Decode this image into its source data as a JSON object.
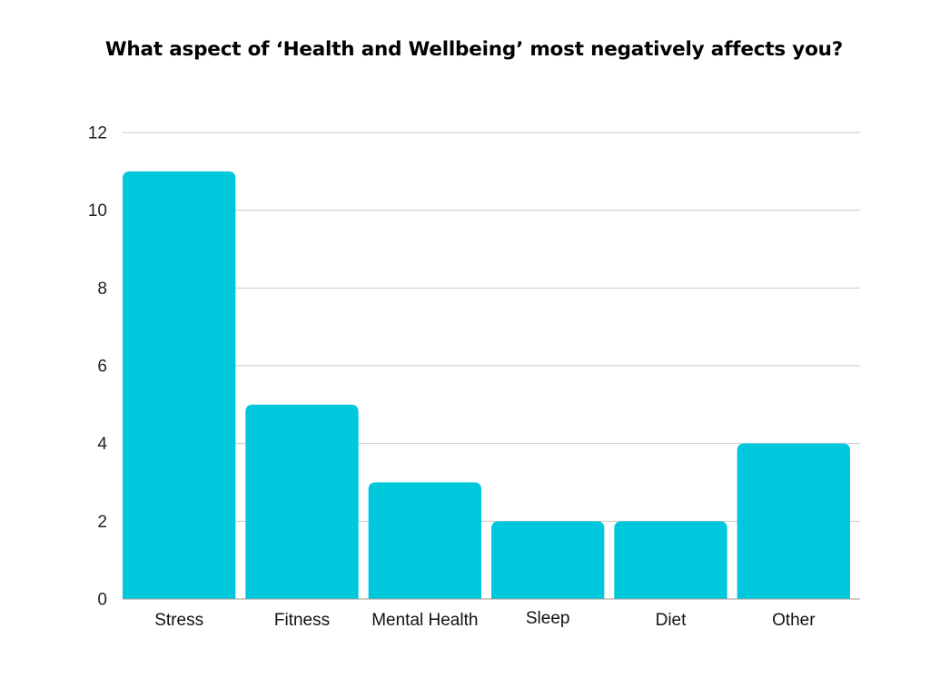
{
  "chart_data": {
    "type": "bar",
    "title": "What aspect of ‘Health and Wellbeing’ most negatively affects you?",
    "categories": [
      "Stress",
      "Fitness",
      "Mental Health",
      "Sleep",
      "Diet",
      "Other"
    ],
    "values": [
      11,
      5,
      3,
      2,
      2,
      4
    ],
    "xlabel": "",
    "ylabel": "",
    "ylim": [
      0,
      12
    ],
    "yticks": [
      0,
      2,
      4,
      6,
      8,
      10,
      12
    ],
    "grid": true,
    "legend": "none",
    "bar_color": "#00C8DC"
  }
}
